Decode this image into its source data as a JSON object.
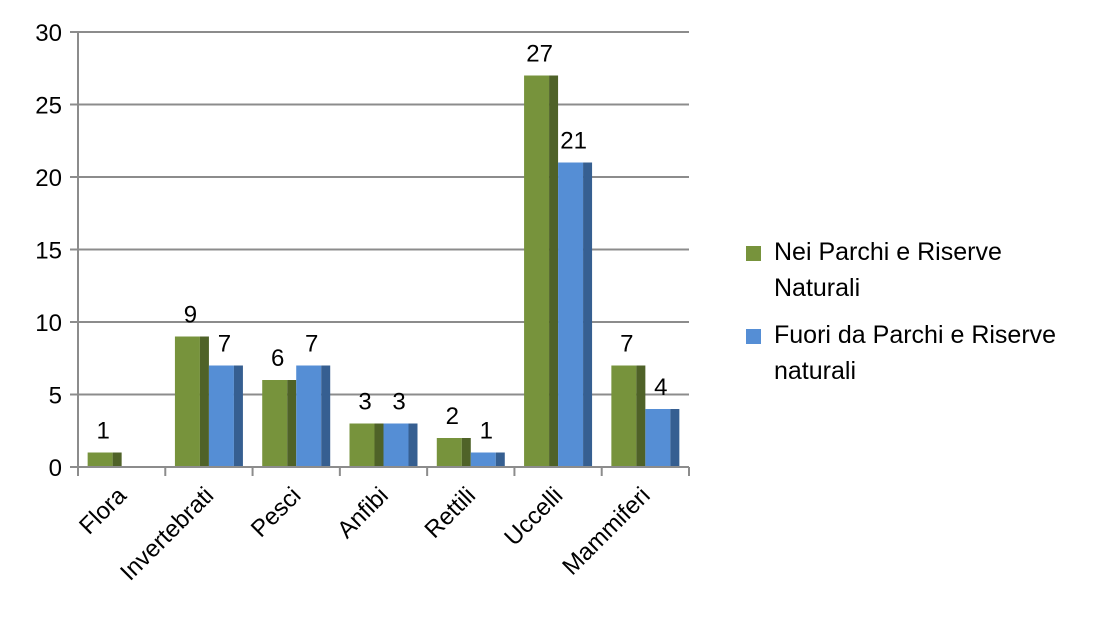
{
  "chart_data": {
    "type": "bar",
    "title": "",
    "xlabel": "",
    "ylabel": "",
    "categories": [
      "Flora",
      "Invertebrati",
      "Pesci",
      "Anfibi",
      "Rettili",
      "Uccelli",
      "Mammiferi"
    ],
    "series": [
      {
        "name": "Nei Parchi e Riserve Naturali",
        "values": [
          1,
          9,
          6,
          3,
          2,
          27,
          7
        ],
        "color": "#77933C",
        "shade": "#4F6228"
      },
      {
        "name": "Fuori da Parchi e Riserve naturali",
        "values": [
          null,
          7,
          7,
          3,
          1,
          21,
          4
        ],
        "color": "#558ED5",
        "shade": "#365F91"
      }
    ],
    "ylim": [
      0,
      30
    ],
    "yticks": [
      0,
      5,
      10,
      15,
      20,
      25,
      30
    ],
    "grid": true,
    "legend_position": "right"
  }
}
